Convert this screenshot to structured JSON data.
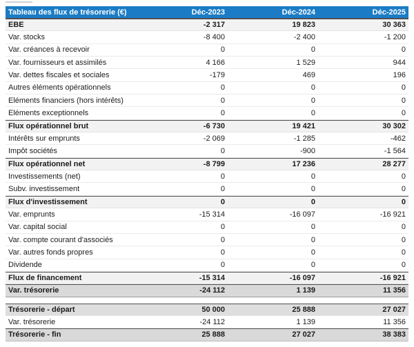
{
  "colors": {
    "header_bg": "#1b7cc5",
    "header_text": "#ffffff",
    "subtotal_bg": "#f2f2f2",
    "strong_bg": "#d9d9d9",
    "start_bg": "#dedede",
    "text": "#1b1b1b",
    "divider": "#ebebeb",
    "dark_border": "#4f4f4f"
  },
  "table": {
    "title": "Tableau des flux de trésorerie (€)",
    "columns": [
      "Déc-2023",
      "Déc-2024",
      "Déc-2025"
    ],
    "rows": [
      {
        "label": "EBE",
        "values": [
          "-2 317",
          "19 823",
          "30 363"
        ],
        "style": "subtotal"
      },
      {
        "label": "Var. stocks",
        "values": [
          "-8 400",
          "-2 400",
          "-1 200"
        ],
        "style": "normal"
      },
      {
        "label": "Var. créances à recevoir",
        "values": [
          "0",
          "0",
          "0"
        ],
        "style": "normal"
      },
      {
        "label": "Var. fournisseurs et assimilés",
        "values": [
          "4 166",
          "1 529",
          "944"
        ],
        "style": "normal"
      },
      {
        "label": "Var. dettes fiscales et sociales",
        "values": [
          "-179",
          "469",
          "196"
        ],
        "style": "normal"
      },
      {
        "label": "Autres éléments opérationnels",
        "values": [
          "0",
          "0",
          "0"
        ],
        "style": "normal"
      },
      {
        "label": "Eléments financiers (hors intérêts)",
        "values": [
          "0",
          "0",
          "0"
        ],
        "style": "normal"
      },
      {
        "label": "Eléments exceptionnels",
        "values": [
          "0",
          "0",
          "0"
        ],
        "style": "normal"
      },
      {
        "label": "Flux opérationnel brut",
        "values": [
          "-6 730",
          "19 421",
          "30 302"
        ],
        "style": "subtotal"
      },
      {
        "label": "Intérêts sur emprunts",
        "values": [
          "-2 069",
          "-1 285",
          "-462"
        ],
        "style": "normal"
      },
      {
        "label": "Impôt sociétés",
        "values": [
          "0",
          "-900",
          "-1 564"
        ],
        "style": "normal"
      },
      {
        "label": "Flux opérationnel net",
        "values": [
          "-8 799",
          "17 236",
          "28 277"
        ],
        "style": "subtotal"
      },
      {
        "label": "Investissements (net)",
        "values": [
          "0",
          "0",
          "0"
        ],
        "style": "normal"
      },
      {
        "label": "Subv. investissement",
        "values": [
          "0",
          "0",
          "0"
        ],
        "style": "normal"
      },
      {
        "label": "Flux d'investissement",
        "values": [
          "0",
          "0",
          "0"
        ],
        "style": "subtotal"
      },
      {
        "label": "Var. emprunts",
        "values": [
          "-15 314",
          "-16 097",
          "-16 921"
        ],
        "style": "normal"
      },
      {
        "label": "Var. capital social",
        "values": [
          "0",
          "0",
          "0"
        ],
        "style": "normal"
      },
      {
        "label": "Var. compte courant d'associés",
        "values": [
          "0",
          "0",
          "0"
        ],
        "style": "normal"
      },
      {
        "label": "Var. autres fonds propres",
        "values": [
          "0",
          "0",
          "0"
        ],
        "style": "normal"
      },
      {
        "label": "Dividende",
        "values": [
          "0",
          "0",
          "0"
        ],
        "style": "normal"
      },
      {
        "label": "Flux de financement",
        "values": [
          "-15 314",
          "-16 097",
          "-16 921"
        ],
        "style": "subtotal"
      },
      {
        "label": "Var. trésorerie",
        "values": [
          "-24 112",
          "1 139",
          "11 356"
        ],
        "style": "strong"
      },
      {
        "label": "Trésorerie - départ",
        "values": [
          "50 000",
          "25 888",
          "27 027"
        ],
        "style": "start",
        "gap_before": true
      },
      {
        "label": "Var. trésorerie",
        "values": [
          "-24 112",
          "1 139",
          "11 356"
        ],
        "style": "normal"
      },
      {
        "label": "Trésorerie - fin",
        "values": [
          "25 888",
          "27 027",
          "38 383"
        ],
        "style": "end"
      }
    ]
  }
}
